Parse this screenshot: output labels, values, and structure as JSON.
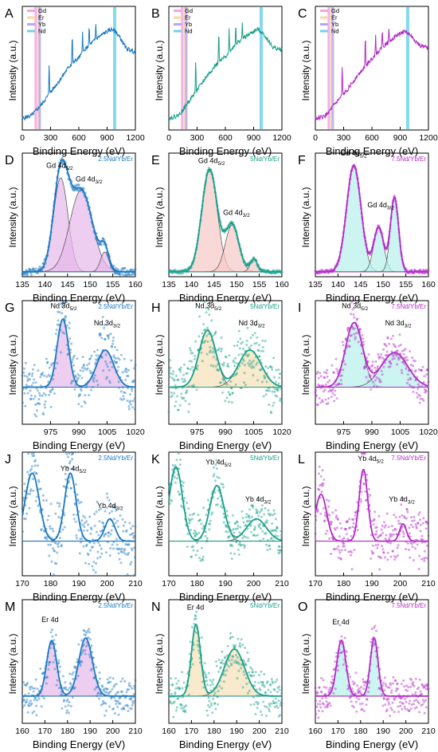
{
  "figure": {
    "colors": {
      "blue": "#1a78c2",
      "teal": "#17a08a",
      "magenta": "#b42bc7",
      "axis": "#000000"
    },
    "xlabel": "Binding Energy (eV)",
    "ylabel": "Intensity (a.u.)"
  },
  "chart_data": [
    {
      "panel": "A",
      "type": "line",
      "row": "survey",
      "color": "#1a78c2",
      "xlim": [
        0,
        1200
      ],
      "xticks": [
        "0",
        "300",
        "600",
        "900",
        "1200"
      ],
      "legend": [
        "Gd",
        "Er",
        "Yb",
        "Nd"
      ],
      "legend_colors": [
        "#f2a3e6",
        "#f7d9a6",
        "#b9a6f0",
        "#6fd3ea"
      ],
      "bands": [
        142,
        170,
        185,
        980
      ],
      "spectrum": [
        [
          0,
          0.05
        ],
        [
          100,
          0.08
        ],
        [
          150,
          0.13
        ],
        [
          200,
          0.18
        ],
        [
          300,
          0.3
        ],
        [
          400,
          0.42
        ],
        [
          500,
          0.55
        ],
        [
          600,
          0.63
        ],
        [
          700,
          0.74
        ],
        [
          800,
          0.82
        ],
        [
          900,
          0.88
        ],
        [
          950,
          0.9
        ],
        [
          1000,
          0.87
        ],
        [
          1050,
          0.8
        ],
        [
          1100,
          0.72
        ],
        [
          1200,
          0.68
        ]
      ],
      "peaks": [
        [
          285,
          0.3
        ],
        [
          530,
          0.28
        ],
        [
          640,
          0.22
        ],
        [
          710,
          0.18
        ],
        [
          780,
          0.15
        ]
      ]
    },
    {
      "panel": "B",
      "type": "line",
      "row": "survey",
      "color": "#17a08a",
      "xlim": [
        0,
        1200
      ],
      "xticks": [
        "0",
        "300",
        "600",
        "900",
        "1200"
      ],
      "legend": [
        "Gd",
        "Er",
        "Yb",
        "Nd"
      ],
      "legend_colors": [
        "#f2a3e6",
        "#f7d9a6",
        "#b9a6f0",
        "#6fd3ea"
      ],
      "bands": [
        142,
        170,
        185,
        980
      ],
      "spectrum": [
        [
          0,
          0.05
        ],
        [
          100,
          0.08
        ],
        [
          150,
          0.13
        ],
        [
          200,
          0.2
        ],
        [
          300,
          0.32
        ],
        [
          400,
          0.45
        ],
        [
          500,
          0.56
        ],
        [
          600,
          0.64
        ],
        [
          700,
          0.75
        ],
        [
          800,
          0.82
        ],
        [
          900,
          0.88
        ],
        [
          950,
          0.9
        ],
        [
          1000,
          0.86
        ],
        [
          1050,
          0.8
        ],
        [
          1100,
          0.73
        ],
        [
          1200,
          0.7
        ]
      ],
      "peaks": [
        [
          285,
          0.3
        ],
        [
          530,
          0.3
        ],
        [
          640,
          0.22
        ],
        [
          710,
          0.2
        ],
        [
          780,
          0.15
        ]
      ]
    },
    {
      "panel": "C",
      "type": "line",
      "row": "survey",
      "color": "#b42bc7",
      "xlim": [
        0,
        1200
      ],
      "xticks": [
        "0",
        "300",
        "600",
        "900",
        "1200"
      ],
      "legend": [
        "Gd",
        "Er",
        "Yb",
        "Nd"
      ],
      "legend_colors": [
        "#f2a3e6",
        "#f7d9a6",
        "#b9a6f0",
        "#6fd3ea"
      ],
      "bands": [
        142,
        170,
        185,
        980
      ],
      "spectrum": [
        [
          0,
          0.05
        ],
        [
          100,
          0.07
        ],
        [
          150,
          0.12
        ],
        [
          200,
          0.18
        ],
        [
          300,
          0.28
        ],
        [
          400,
          0.4
        ],
        [
          500,
          0.52
        ],
        [
          600,
          0.62
        ],
        [
          700,
          0.72
        ],
        [
          800,
          0.8
        ],
        [
          900,
          0.86
        ],
        [
          950,
          0.88
        ],
        [
          1000,
          0.85
        ],
        [
          1050,
          0.8
        ],
        [
          1100,
          0.75
        ],
        [
          1200,
          0.72
        ]
      ],
      "peaks": [
        [
          285,
          0.28
        ],
        [
          530,
          0.27
        ],
        [
          640,
          0.2
        ],
        [
          710,
          0.17
        ],
        [
          780,
          0.14
        ]
      ]
    },
    {
      "panel": "D",
      "type": "line",
      "row": "gd",
      "color": "#1a78c2",
      "sample": "2.5Nd/Yb/Er",
      "xlim": [
        135,
        160
      ],
      "xticks": [
        "135",
        "140",
        "145",
        "150",
        "155",
        "160"
      ],
      "baseline": 0.04,
      "fill": "#e6b9ea",
      "peaks": [
        {
          "center": 143.5,
          "height": 0.76,
          "width": 1.6
        },
        {
          "center": 148,
          "height": 0.66,
          "width": 2.5
        },
        {
          "center": 153.2,
          "height": 0.16,
          "width": 0.9
        }
      ],
      "labels": [
        {
          "text": "Gd 4d",
          "sub": "5/2",
          "x": 140.3,
          "y": 0.88
        },
        {
          "text": "Gd 4d",
          "sub": "3/2",
          "x": 146.8,
          "y": 0.77
        }
      ],
      "noise": 0.03
    },
    {
      "panel": "E",
      "type": "line",
      "row": "gd",
      "color": "#17a08a",
      "sample": "5Nd/Yb/Er",
      "xlim": [
        135,
        160
      ],
      "xticks": [
        "135",
        "140",
        "145",
        "150",
        "155",
        "160"
      ],
      "baseline": 0.04,
      "fill": "#f7c9c6",
      "peaks": [
        {
          "center": 144,
          "height": 0.83,
          "width": 1.7
        },
        {
          "center": 149,
          "height": 0.38,
          "width": 1.5
        },
        {
          "center": 153.8,
          "height": 0.1,
          "width": 0.8
        }
      ],
      "labels": [
        {
          "text": "Gd 4d",
          "sub": "5/2",
          "x": 141.5,
          "y": 0.92
        },
        {
          "text": "Gd 4d",
          "sub": "3/2",
          "x": 147,
          "y": 0.5
        }
      ],
      "noise": 0.015
    },
    {
      "panel": "F",
      "type": "line",
      "row": "gd",
      "color": "#b42bc7",
      "sample": "7.5Nd/Yb/Er",
      "xlim": [
        135,
        160
      ],
      "xticks": [
        "135",
        "140",
        "145",
        "150",
        "155",
        "160"
      ],
      "baseline": 0.04,
      "fill": "#b6efe9",
      "peaks": [
        {
          "center": 143.5,
          "height": 0.86,
          "width": 1.6
        },
        {
          "center": 149,
          "height": 0.36,
          "width": 1.1
        },
        {
          "center": 152.5,
          "height": 0.6,
          "width": 0.9
        }
      ],
      "labels": [
        {
          "text": "Gd 4d",
          "sub": "5/2",
          "x": 140.5,
          "y": 0.98
        },
        {
          "text": "Gd 4d",
          "sub": "3/2",
          "x": 146.5,
          "y": 0.56
        }
      ],
      "noise": 0.015
    },
    {
      "panel": "G",
      "type": "line",
      "row": "nd",
      "color": "#1a78c2",
      "sample": "2.5Nd/Yb/Er",
      "xlim": [
        960,
        1020
      ],
      "xticks": [
        "975",
        "990",
        "1005",
        "1020"
      ],
      "baseline": 0.3,
      "fill": "#e6b9ea",
      "peaks": [
        {
          "center": 981.5,
          "height": 0.55,
          "width": 3
        },
        {
          "center": 1004,
          "height": 0.3,
          "width": 4.5
        }
      ],
      "labels": [
        {
          "text": "Nd 3d",
          "sub": "5/2",
          "x": 975,
          "y": 0.94
        },
        {
          "text": "Nd 3d",
          "sub": "3/2",
          "x": 998,
          "y": 0.8
        }
      ],
      "noise": 0.18
    },
    {
      "panel": "H",
      "type": "line",
      "row": "nd",
      "color": "#17a08a",
      "sample": "5Nd/Yb/Er",
      "xlim": [
        960,
        1020
      ],
      "xticks": [
        "975",
        "990",
        "1005",
        "1020"
      ],
      "baseline": 0.3,
      "fill": "#f7e0b8",
      "peaks": [
        {
          "center": 980.5,
          "height": 0.46,
          "width": 4.5
        },
        {
          "center": 1003,
          "height": 0.3,
          "width": 6
        }
      ],
      "labels": [
        {
          "text": "Nd 3d",
          "sub": "5/2",
          "x": 974,
          "y": 0.94
        },
        {
          "text": "Nd 3d",
          "sub": "3/2",
          "x": 997,
          "y": 0.8
        }
      ],
      "noise": 0.18
    },
    {
      "panel": "I",
      "type": "line",
      "row": "nd",
      "color": "#b42bc7",
      "sample": "7.5Nd/Yb/Er",
      "xlim": [
        960,
        1020
      ],
      "xticks": [
        "975",
        "990",
        "1005",
        "1020"
      ],
      "baseline": 0.3,
      "fill": "#b6efe9",
      "peaks": [
        {
          "center": 980.5,
          "height": 0.52,
          "width": 4.5
        },
        {
          "center": 1002,
          "height": 0.28,
          "width": 7
        }
      ],
      "labels": [
        {
          "text": "Nd 3d",
          "sub": "5/2",
          "x": 974,
          "y": 0.94
        },
        {
          "text": "Nd 3d",
          "sub": "3/2",
          "x": 997,
          "y": 0.8
        }
      ],
      "noise": 0.12
    },
    {
      "panel": "J",
      "type": "line",
      "row": "yb",
      "color": "#1a78c2",
      "sample": "2.5Nd/Yb/Er",
      "xlim": [
        170,
        210
      ],
      "xticks": [
        "170",
        "180",
        "190",
        "200",
        "210"
      ],
      "baseline": 0.28,
      "fill": null,
      "peaks": [
        {
          "center": 173.5,
          "height": 0.55,
          "width": 2.5
        },
        {
          "center": 187,
          "height": 0.55,
          "width": 2
        },
        {
          "center": 201,
          "height": 0.18,
          "width": 1.8
        }
      ],
      "labels": [
        {
          "text": "Yb 4d",
          "sub": "5/2",
          "x": 183.5,
          "y": 0.85
        },
        {
          "text": "Yb 4d",
          "sub": "3/2",
          "x": 196.5,
          "y": 0.55
        }
      ],
      "noise": 0.2
    },
    {
      "panel": "K",
      "type": "line",
      "row": "yb",
      "color": "#17a08a",
      "sample": "5Nd/Yb/Er",
      "xlim": [
        170,
        210
      ],
      "xticks": [
        "170",
        "180",
        "190",
        "200",
        "210"
      ],
      "baseline": 0.28,
      "fill": null,
      "peaks": [
        {
          "center": 172.5,
          "height": 0.6,
          "width": 2.3
        },
        {
          "center": 187,
          "height": 0.45,
          "width": 2.5
        },
        {
          "center": 201,
          "height": 0.18,
          "width": 3.5
        }
      ],
      "labels": [
        {
          "text": "Yb 4d",
          "sub": "5/2",
          "x": 183,
          "y": 0.9
        },
        {
          "text": "Yb 4d",
          "sub": "3/2",
          "x": 197,
          "y": 0.6
        }
      ],
      "noise": 0.15
    },
    {
      "panel": "L",
      "type": "line",
      "row": "yb",
      "color": "#b42bc7",
      "sample": "7.5Nd/Yb/Er",
      "xlim": [
        170,
        210
      ],
      "xticks": [
        "170",
        "180",
        "190",
        "200",
        "210"
      ],
      "baseline": 0.28,
      "fill": null,
      "peaks": [
        {
          "center": 172,
          "height": 0.38,
          "width": 2
        },
        {
          "center": 187,
          "height": 0.58,
          "width": 1.5
        },
        {
          "center": 201,
          "height": 0.14,
          "width": 1.2
        }
      ],
      "labels": [
        {
          "text": "Yb 4d",
          "sub": "5/2",
          "x": 185,
          "y": 0.93
        },
        {
          "text": "Yb 4d",
          "sub": "3/2",
          "x": 196,
          "y": 0.6
        }
      ],
      "noise": 0.17
    },
    {
      "panel": "M",
      "type": "line",
      "row": "er",
      "color": "#1a78c2",
      "sample": "2.5Nd/Yb/Er",
      "xlim": [
        160,
        210
      ],
      "xticks": [
        "160",
        "170",
        "180",
        "190",
        "200",
        "210"
      ],
      "baseline": 0.22,
      "fill": "#e6b9ea",
      "peaks": [
        {
          "center": 173,
          "height": 0.45,
          "width": 2.2
        },
        {
          "center": 188,
          "height": 0.47,
          "width": 3
        }
      ],
      "labels": [
        {
          "text": "Er 4d",
          "sub": "",
          "x": 168.5,
          "y": 0.82
        }
      ],
      "noise": 0.12
    },
    {
      "panel": "N",
      "type": "line",
      "row": "er",
      "color": "#17a08a",
      "sample": "5Nd/Yb/Er",
      "xlim": [
        160,
        210
      ],
      "xticks": [
        "160",
        "170",
        "180",
        "190",
        "200",
        "210"
      ],
      "baseline": 0.22,
      "fill": "#f7e0b8",
      "peaks": [
        {
          "center": 172,
          "height": 0.58,
          "width": 2
        },
        {
          "center": 189,
          "height": 0.38,
          "width": 4.5
        }
      ],
      "labels": [
        {
          "text": "Er 4d",
          "sub": "",
          "x": 168,
          "y": 0.92
        }
      ],
      "noise": 0.14
    },
    {
      "panel": "O",
      "type": "line",
      "row": "er",
      "color": "#b42bc7",
      "sample": "7.5Nd/Yb/Er",
      "xlim": [
        160,
        210
      ],
      "xticks": [
        "160",
        "170",
        "180",
        "190",
        "200",
        "210"
      ],
      "baseline": 0.22,
      "fill": "#b6efe9",
      "peaks": [
        {
          "center": 171.5,
          "height": 0.45,
          "width": 2
        },
        {
          "center": 186,
          "height": 0.47,
          "width": 1.7
        }
      ],
      "labels": [
        {
          "text": "Er 4d",
          "sub": "",
          "x": 167.5,
          "y": 0.8
        }
      ],
      "noise": 0.12
    }
  ]
}
